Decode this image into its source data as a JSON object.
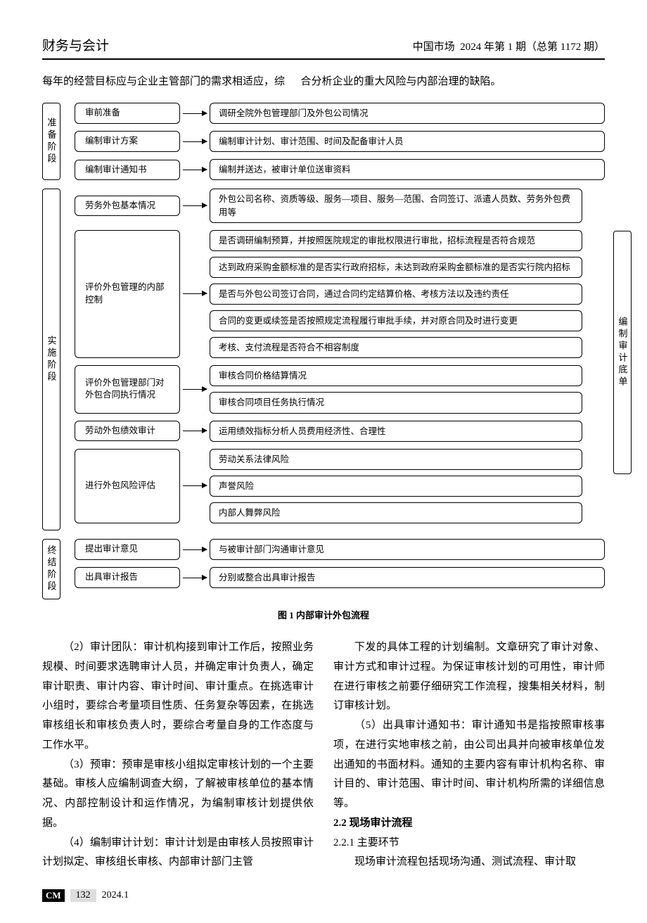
{
  "header": {
    "section": "财务与会计",
    "journal": "中国市场",
    "issue": "2024 年第 1 期（总第 1172 期）"
  },
  "intro": {
    "left": "每年的经营目标应与企业主管部门的需求相适应，综",
    "right": "合分析企业的重大风险与内部治理的缺陷。"
  },
  "flowchart": {
    "caption": "图 1  内部审计外包流程",
    "side_label": "编制审计底单",
    "phases": [
      {
        "label": "准备阶段",
        "rows": [
          {
            "left": "审前准备",
            "right": "调研全院外包管理部门及外包公司情况"
          },
          {
            "left": "编制审计方案",
            "right": "编制审计计划、审计范围、时间及配备审计人员"
          },
          {
            "left": "编制审计通知书",
            "right": "编制并送达，被审计单位送审资料"
          }
        ]
      },
      {
        "label": "实施阶段",
        "rows": [
          {
            "left": "劳务外包基本情况",
            "right": "外包公司名称、资质等级、服务—项目、服务—范围、合同签订、派遣人员数、劳务外包费用等"
          },
          {
            "left": "评价外包管理的内部控制",
            "stack": [
              "是否调研编制预算，并按照医院规定的审批权限进行审批，招标流程是否符合规范",
              "达到政府采购金额标准的是否实行政府招标，未达到政府采购金额标准的是否实行院内招标",
              "是否与外包公司签订合同，通过合同约定结算价格、考核方法以及违约责任",
              "合同的变更或续签是否按照规定流程履行审批手续，并对原合同及时进行变更",
              "考核、支付流程是否符合不相容制度"
            ]
          },
          {
            "left": "评价外包管理部门对外包合同执行情况",
            "stack": [
              "审核合同价格结算情况",
              "审核合同项目任务执行情况"
            ]
          },
          {
            "left": "劳动外包绩效审计",
            "right": "运用绩效指标分析人员费用经济性、合理性"
          },
          {
            "left": "进行外包风险评估",
            "stack": [
              "劳动关系法律风险",
              "声誉风险",
              "内部人舞弊风险"
            ]
          }
        ]
      },
      {
        "label": "终结阶段",
        "rows": [
          {
            "left": "提出审计意见",
            "right": "与被审计部门沟通审计意见"
          },
          {
            "left": "出具审计报告",
            "right": "分别或整合出具审计报告"
          }
        ]
      }
    ]
  },
  "body": {
    "p1": "（2）审计团队：审计机构接到审计工作后，按照业务规模、时间要求选聘审计人员，并确定审计负责人，确定审计职责、审计内容、审计时间、审计重点。在挑选审计小组时，要综合考量项目性质、任务复杂等因素，在挑选审核组长和审核负责人时，要综合考量自身的工作态度与工作水平。",
    "p2": "（3）预审：预审是审核小组拟定审核计划的一个主要基础。审核人应编制调查大纲，了解被审核单位的基本情况、内部控制设计和运作情况，为编制审核计划提供依据。",
    "p3": "（4）编制审计计划：审计计划是由审核人员按照审计计划拟定、审核组长审核、内部审计部门主管",
    "p4": "下发的具体工程的计划编制。文章研究了审计对象、审计方式和审计过程。为保证审核计划的可用性，审计师在进行审核之前要仔细研究工作流程，搜集相关材料，制订审核计划。",
    "p5": "（5）出具审计通知书：审计通知书是指按照审核事项，在进行实地审核之前，由公司出具并向被审核单位发出通知的书面材料。通知的主要内容有审计机构名称、审计目的、审计范围、审计时间、审计机构所需的详细信息等。",
    "h22": "2.2  现场审计流程",
    "h221": "2.2.1  主要环节",
    "p6": "现场审计流程包括现场沟通、测试流程、审计取"
  },
  "footer": {
    "badge": "CM",
    "page": "132",
    "date": "2024.1"
  },
  "colors": {
    "text": "#000000",
    "bg": "#ffffff",
    "border": "#000000",
    "footer_gray": "#dddddd"
  }
}
